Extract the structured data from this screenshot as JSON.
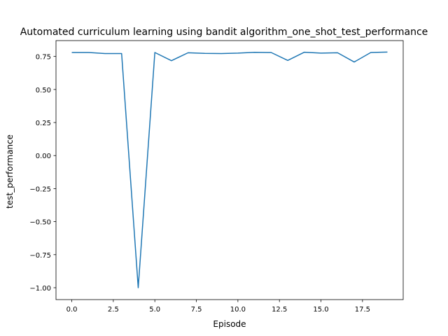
{
  "chart_data": {
    "type": "line",
    "title": "Automated curriculum learning using bandit algorithm_one_shot_test_performance",
    "xlabel": "Episode",
    "ylabel": "test_performance",
    "xlim": [
      -0.95,
      19.95
    ],
    "ylim": [
      -1.09,
      0.87
    ],
    "xticks": [
      0.0,
      2.5,
      5.0,
      7.5,
      10.0,
      12.5,
      15.0,
      17.5
    ],
    "xtick_labels": [
      "0.0",
      "2.5",
      "5.0",
      "7.5",
      "10.0",
      "12.5",
      "15.0",
      "17.5"
    ],
    "yticks": [
      -1.0,
      -0.75,
      -0.5,
      -0.25,
      0.0,
      0.25,
      0.5,
      0.75
    ],
    "ytick_labels": [
      "−1.00",
      "−0.75",
      "−0.50",
      "−0.25",
      "0.00",
      "0.25",
      "0.50",
      "0.75"
    ],
    "grid": false,
    "line_color": "#1f77b4",
    "series": [
      {
        "x": [
          0,
          1,
          2,
          3,
          4,
          5,
          6,
          7,
          8,
          9,
          10,
          11,
          12,
          13,
          14,
          15,
          16,
          17,
          18,
          19
        ],
        "values": [
          0.78,
          0.78,
          0.772,
          0.772,
          -1.0,
          0.78,
          0.718,
          0.778,
          0.773,
          0.772,
          0.775,
          0.781,
          0.78,
          0.72,
          0.782,
          0.775,
          0.778,
          0.708,
          0.78,
          0.783
        ]
      }
    ]
  }
}
